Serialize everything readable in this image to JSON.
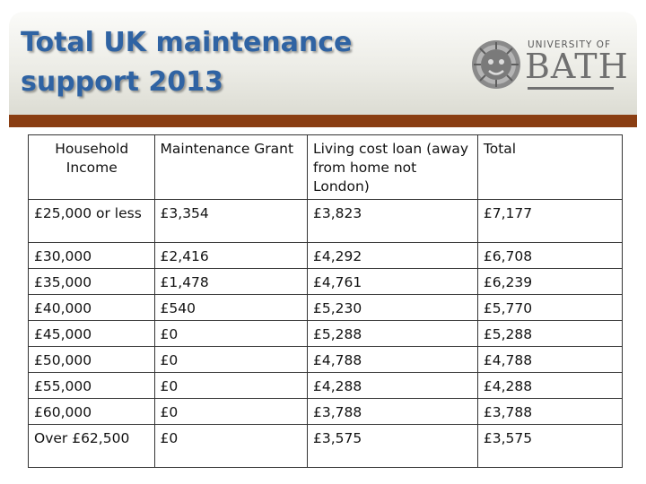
{
  "title_line1": "Total UK maintenance",
  "title_line2": "support 2013",
  "logo": {
    "university_of": "UNIVERSITY OF",
    "bath": "BATH"
  },
  "colors": {
    "title": "#2f63a3",
    "bar": "#8a3e12",
    "logo_grey": "#707070"
  },
  "table": {
    "headers": [
      "Household Income",
      "Maintenance Grant",
      "Living cost loan (away from home not London)",
      "Total"
    ],
    "rows": [
      [
        "£25,000 or less",
        "£3,354",
        "£3,823",
        "£7,177"
      ],
      [
        "£30,000",
        "£2,416",
        "£4,292",
        "£6,708"
      ],
      [
        "£35,000",
        "£1,478",
        "£4,761",
        "£6,239"
      ],
      [
        "£40,000",
        "£540",
        "£5,230",
        "£5,770"
      ],
      [
        "£45,000",
        "£0",
        "£5,288",
        "£5,288"
      ],
      [
        "£50,000",
        "£0",
        "£4,788",
        "£4,788"
      ],
      [
        "£55,000",
        "£0",
        "£4,288",
        "£4,288"
      ],
      [
        "£60,000",
        "£0",
        "£3,788",
        "£3,788"
      ],
      [
        "Over £62,500",
        "£0",
        "£3,575",
        "£3,575"
      ]
    ]
  }
}
